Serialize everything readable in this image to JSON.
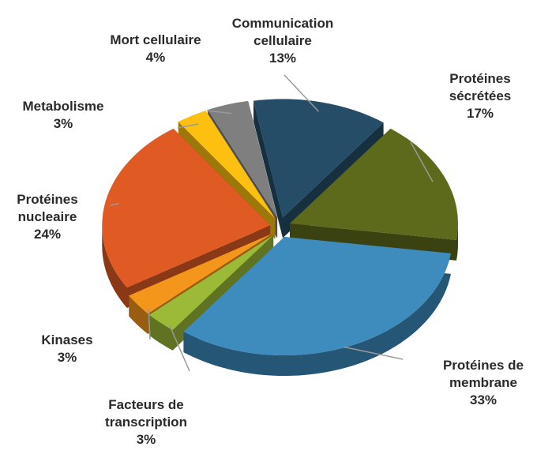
{
  "chart_data": {
    "type": "pie",
    "categories": [
      "Communication cellulaire",
      "Protéines sécrétées",
      "Protéines de membrane",
      "Facteurs de transcription",
      "Kinases",
      "Protéines nucleaire",
      "Metabolisme",
      "Mort cellulaire"
    ],
    "values": [
      13,
      17,
      33,
      3,
      3,
      24,
      3,
      4
    ],
    "value_labels": [
      "13%",
      "17%",
      "33%",
      "3%",
      "3%",
      "24%",
      "3%",
      "4%"
    ],
    "colors": [
      "#254d68",
      "#5d6a1b",
      "#3e8bbd",
      "#9aba38",
      "#f5961c",
      "#e05a24",
      "#fdc010",
      "#7f7f7f"
    ]
  }
}
